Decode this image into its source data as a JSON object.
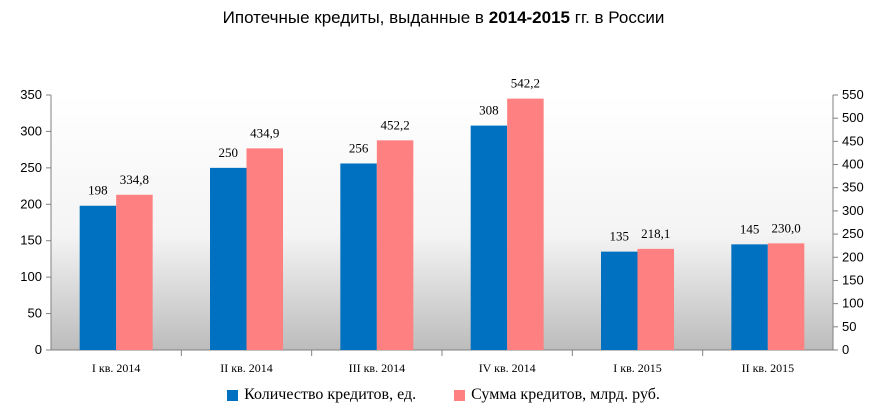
{
  "chart_data": {
    "type": "bar",
    "title_prefix": "Ипотечные кредиты, выданные в",
    "title_bold": "2014-2015",
    "title_suffix": "гг. в России",
    "categories": [
      "I кв. 2014",
      "II кв. 2014",
      "III кв. 2014",
      "IV кв. 2014",
      "I кв. 2015",
      "II кв. 2015"
    ],
    "series": [
      {
        "name": "Количество кредитов, ед.",
        "axis": "left",
        "color": "#0070C0",
        "values": [
          198,
          250,
          256,
          308,
          135,
          145
        ],
        "labels": [
          "198",
          "250",
          "256",
          "308",
          "135",
          "145"
        ]
      },
      {
        "name": "Сумма кредитов, млрд. руб.",
        "axis": "right",
        "color": "#FF8080",
        "values": [
          334.8,
          434.9,
          452.2,
          542.2,
          218.1,
          230.0
        ],
        "labels": [
          "334,8",
          "434,9",
          "452,2",
          "542,2",
          "218,1",
          "230,0"
        ]
      }
    ],
    "y_left": {
      "ylim": [
        0,
        350
      ],
      "ticks": [
        0,
        50,
        100,
        150,
        200,
        250,
        300,
        350
      ]
    },
    "y_right": {
      "ylim": [
        0,
        550
      ],
      "ticks": [
        0,
        50,
        100,
        150,
        200,
        250,
        300,
        350,
        400,
        450,
        500,
        550
      ]
    },
    "legend_position": "bottom",
    "grid": false,
    "background_gradient": true
  }
}
